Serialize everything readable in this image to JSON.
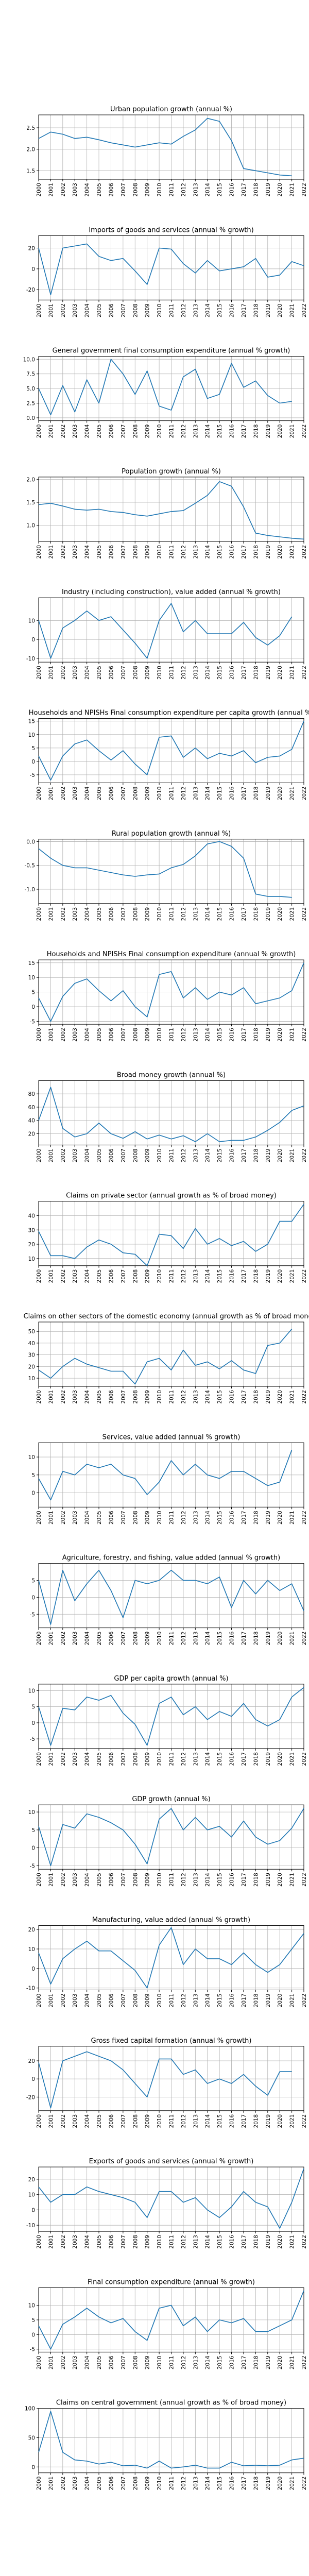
{
  "figure": {
    "years": [
      "2000",
      "2001",
      "2002",
      "2003",
      "2004",
      "2005",
      "2006",
      "2007",
      "2008",
      "2009",
      "2010",
      "2011",
      "2012",
      "2013",
      "2014",
      "2015",
      "2016",
      "2017",
      "2018",
      "2019",
      "2020",
      "2021",
      "2022"
    ],
    "line_color": "#1f77b4",
    "grid": true
  },
  "chart_data": [
    {
      "type": "line",
      "title": "Urban population growth (annual %)",
      "ylim": [
        1.3,
        2.8
      ],
      "yticks": [
        1.5,
        2.0,
        2.5
      ],
      "values": [
        2.25,
        2.4,
        2.35,
        2.25,
        2.28,
        2.22,
        2.15,
        2.1,
        2.05,
        2.1,
        2.15,
        2.12,
        2.3,
        2.45,
        2.72,
        2.65,
        2.2,
        1.55,
        1.5,
        1.45,
        1.4,
        1.38,
        null
      ]
    },
    {
      "type": "line",
      "title": "Imports of goods and services (annual % growth)",
      "ylim": [
        -30,
        32
      ],
      "yticks": [
        -20,
        0,
        20
      ],
      "values": [
        20,
        -25,
        20,
        22,
        24,
        12,
        8,
        10,
        -2,
        -15,
        20,
        19,
        5,
        -4,
        8,
        -2,
        0,
        2,
        10,
        -8,
        -6,
        7,
        3
      ]
    },
    {
      "type": "line",
      "title": "General government final consumption expenditure (annual % growth)",
      "ylim": [
        -0.5,
        10.5
      ],
      "yticks": [
        0.0,
        2.5,
        5.0,
        7.5,
        10.0
      ],
      "values": [
        5,
        0.5,
        5.5,
        1,
        6.5,
        2.5,
        10,
        7.5,
        4,
        8,
        2,
        1.3,
        7,
        8.3,
        3.3,
        4,
        9.3,
        5.2,
        6.3,
        3.8,
        2.5,
        2.8,
        null
      ]
    },
    {
      "type": "line",
      "title": "Population growth (annual %)",
      "ylim": [
        0.65,
        2.05
      ],
      "yticks": [
        1.0,
        1.5,
        2.0
      ],
      "values": [
        1.45,
        1.48,
        1.42,
        1.35,
        1.33,
        1.35,
        1.3,
        1.28,
        1.23,
        1.2,
        1.25,
        1.3,
        1.32,
        1.48,
        1.65,
        1.95,
        1.85,
        1.4,
        0.83,
        0.78,
        0.75,
        0.72,
        0.7
      ]
    },
    {
      "type": "line",
      "title": "Industry (including construction), value added (annual % growth)",
      "ylim": [
        -12,
        22
      ],
      "yticks": [
        -10,
        0,
        10
      ],
      "values": [
        10,
        -10,
        6,
        10,
        15,
        10,
        12,
        5,
        -2,
        -10,
        10,
        19,
        4,
        10,
        3,
        3,
        3,
        9,
        1,
        -3,
        2,
        12,
        null
      ]
    },
    {
      "type": "line",
      "title": "Households and NPISHs Final consumption expenditure per capita growth (annual %)",
      "ylim": [
        -8,
        16
      ],
      "yticks": [
        -5,
        0,
        5,
        10,
        15
      ],
      "values": [
        2,
        -7,
        2,
        6.5,
        8,
        4,
        0.5,
        4,
        -1,
        -5,
        9,
        9.5,
        1.5,
        5,
        1,
        3,
        2,
        4,
        -0.5,
        1.5,
        2,
        4.5,
        15
      ]
    },
    {
      "type": "line",
      "title": "Rural population growth (annual %)",
      "ylim": [
        -1.3,
        0.05
      ],
      "yticks": [
        -1.0,
        -0.5,
        0.0
      ],
      "values": [
        -0.15,
        -0.35,
        -0.5,
        -0.55,
        -0.55,
        -0.6,
        -0.65,
        -0.7,
        -0.73,
        -0.7,
        -0.68,
        -0.55,
        -0.48,
        -0.3,
        -0.05,
        0.0,
        -0.1,
        -0.35,
        -1.1,
        -1.15,
        -1.15,
        -1.17,
        null
      ]
    },
    {
      "type": "line",
      "title": "Households and NPISHs Final consumption expenditure (annual % growth)",
      "ylim": [
        -6,
        16
      ],
      "yticks": [
        -5,
        0,
        5,
        10,
        15
      ],
      "values": [
        3,
        -5,
        3.5,
        8,
        9.5,
        5.5,
        2,
        5.5,
        0,
        -3.5,
        11,
        12,
        3,
        6.5,
        2.5,
        5,
        4,
        6.5,
        1,
        2,
        3,
        5.5,
        15
      ]
    },
    {
      "type": "line",
      "title": "Broad money growth (annual %)",
      "ylim": [
        3,
        100
      ],
      "yticks": [
        20,
        40,
        60,
        80
      ],
      "values": [
        40,
        90,
        28,
        15,
        20,
        36,
        20,
        13,
        23,
        12,
        18,
        12,
        17,
        8,
        20,
        8,
        10,
        10,
        15,
        25,
        37,
        55,
        62
      ]
    },
    {
      "type": "line",
      "title": "Claims on private sector (annual growth as % of broad money)",
      "ylim": [
        5,
        50
      ],
      "yticks": [
        10,
        20,
        30,
        40
      ],
      "values": [
        29,
        12,
        12,
        10,
        18,
        23,
        20,
        14,
        13,
        5,
        27,
        26,
        17,
        31,
        20,
        24,
        19,
        22,
        15,
        20,
        36,
        36,
        48
      ]
    },
    {
      "type": "line",
      "title": "Claims on other sectors of the domestic economy (annual growth as % of broad money)",
      "ylim": [
        3,
        58
      ],
      "yticks": [
        10,
        20,
        30,
        40,
        50
      ],
      "values": [
        17,
        10,
        20,
        27,
        22,
        19,
        16,
        16,
        5,
        24,
        27,
        17,
        34,
        21,
        24,
        18,
        25,
        17,
        14,
        38,
        40,
        52,
        null
      ]
    },
    {
      "type": "line",
      "title": "Services, value added (annual % growth)",
      "ylim": [
        -4,
        14
      ],
      "yticks": [
        0,
        5,
        10
      ],
      "values": [
        4,
        -2,
        6,
        5,
        8,
        7,
        8,
        5,
        4,
        -0.5,
        3,
        9,
        5,
        8,
        5,
        4,
        6,
        6,
        4,
        2,
        3,
        12,
        null
      ]
    },
    {
      "type": "line",
      "title": "Agriculture, forestry, and fishing, value added (annual % growth)",
      "ylim": [
        -9,
        10
      ],
      "yticks": [
        -5,
        0,
        5
      ],
      "values": [
        5,
        -8,
        8,
        -1,
        4,
        8,
        2,
        -6,
        5,
        4,
        5,
        8,
        5,
        5,
        4,
        6,
        -3,
        5,
        1,
        5,
        2,
        4,
        -4
      ]
    },
    {
      "type": "line",
      "title": "GDP per capita growth (annual %)",
      "ylim": [
        -8,
        12
      ],
      "yticks": [
        -5,
        0,
        5,
        10
      ],
      "values": [
        5,
        -7,
        4.5,
        4,
        8,
        7,
        8.5,
        3,
        -0.5,
        -7,
        6,
        8,
        2.5,
        5,
        1,
        3.5,
        2,
        6,
        1,
        -1,
        1,
        8,
        11
      ]
    },
    {
      "type": "line",
      "title": "GDP growth (annual %)",
      "ylim": [
        -6,
        12
      ],
      "yticks": [
        -5,
        0,
        5,
        10
      ],
      "values": [
        6,
        -5,
        6.5,
        5.5,
        9.5,
        8.5,
        7,
        5,
        1,
        -4.5,
        8,
        11,
        5,
        8.5,
        5,
        6,
        3,
        7.5,
        3,
        1,
        2,
        5.5,
        11
      ]
    },
    {
      "type": "line",
      "title": "Manufacturing, value added (annual % growth)",
      "ylim": [
        -11,
        22
      ],
      "yticks": [
        -10,
        0,
        10,
        20
      ],
      "values": [
        8,
        -8,
        5,
        10,
        14,
        9,
        9,
        4,
        -1,
        -10,
        12,
        21,
        2,
        10,
        5,
        5,
        2,
        8,
        2,
        -2,
        2,
        10,
        18
      ]
    },
    {
      "type": "line",
      "title": "Gross fixed capital formation (annual % growth)",
      "ylim": [
        -35,
        36
      ],
      "yticks": [
        -20,
        0,
        20
      ],
      "values": [
        18,
        -32,
        20,
        25,
        30,
        25,
        20,
        10,
        -5,
        -20,
        22,
        22,
        5,
        10,
        -5,
        0,
        -5,
        5,
        -8,
        -18,
        8,
        8,
        null
      ]
    },
    {
      "type": "line",
      "title": "Exports of goods and services (annual % growth)",
      "ylim": [
        -14,
        28
      ],
      "yticks": [
        -10,
        0,
        10,
        20
      ],
      "values": [
        15,
        5,
        10,
        10,
        15,
        12,
        10,
        8,
        5,
        -5,
        12,
        12,
        5,
        8,
        0,
        -5,
        2,
        12,
        5,
        2,
        -12,
        5,
        27
      ]
    },
    {
      "type": "line",
      "title": "Final consumption expenditure (annual % growth)",
      "ylim": [
        -6,
        16
      ],
      "yticks": [
        -5,
        0,
        5,
        10
      ],
      "values": [
        3,
        -5,
        3.5,
        6,
        9,
        6,
        4,
        5.5,
        1,
        -2,
        9,
        10,
        3,
        6,
        1,
        5,
        4,
        5.5,
        1,
        1,
        3,
        5,
        15
      ]
    },
    {
      "type": "line",
      "title": "Claims on central government (annual growth as % of broad money)",
      "ylim": [
        -10,
        100
      ],
      "yticks": [
        0,
        50,
        100
      ],
      "values": [
        25,
        95,
        25,
        12,
        10,
        5,
        8,
        2,
        3,
        -2,
        10,
        -2,
        0,
        3,
        -2,
        -2,
        8,
        2,
        3,
        2,
        3,
        12,
        15
      ]
    }
  ]
}
